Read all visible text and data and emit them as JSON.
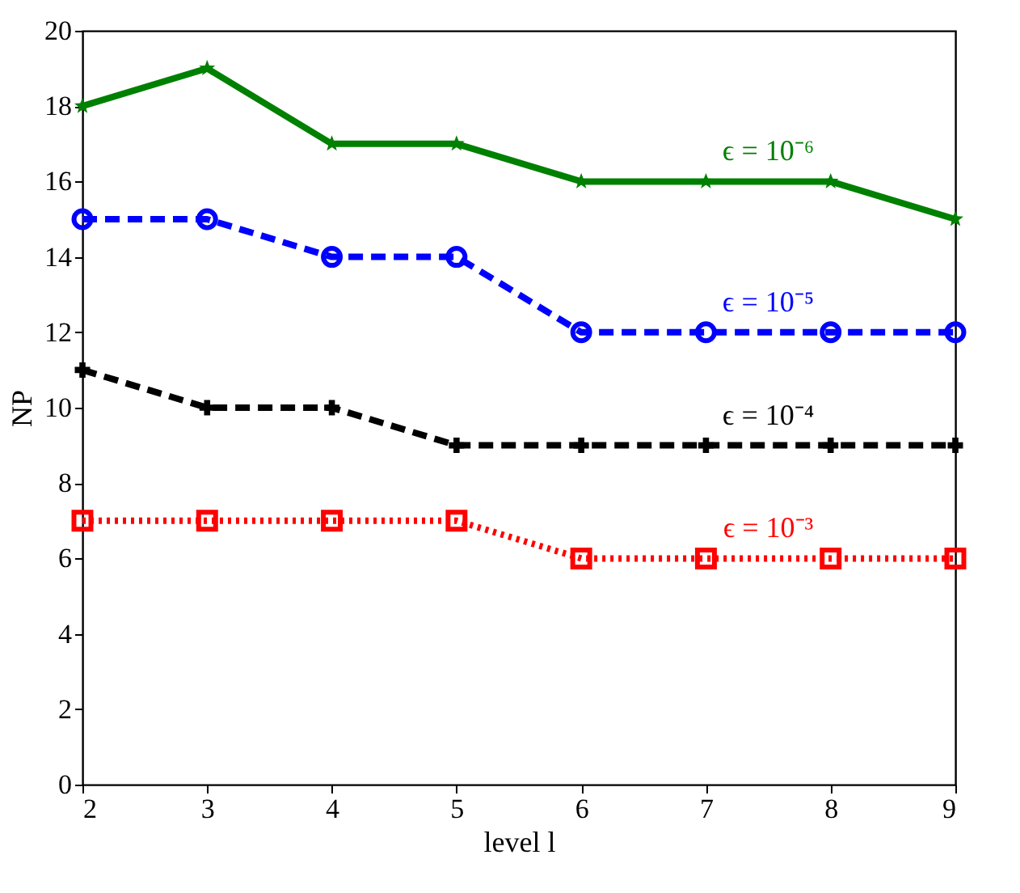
{
  "chart_data": {
    "type": "line",
    "xlabel": "level l",
    "ylabel": "NP",
    "x": [
      2,
      3,
      4,
      5,
      6,
      7,
      8,
      9
    ],
    "xlim": [
      2,
      9
    ],
    "xticks": [
      2,
      3,
      4,
      5,
      6,
      7,
      8,
      9
    ],
    "ylim": [
      0,
      20
    ],
    "yticks": [
      0,
      2,
      4,
      6,
      8,
      10,
      12,
      14,
      16,
      18,
      20
    ],
    "grid": false,
    "legend": false,
    "series": [
      {
        "name": "ϵ = 10⁻⁶",
        "color": "#008000",
        "values": [
          18,
          19,
          17,
          17,
          16,
          16,
          16,
          15
        ],
        "line_style": "solid",
        "marker": "star"
      },
      {
        "name": "ϵ = 10⁻⁵",
        "color": "#0000ff",
        "values": [
          15,
          15,
          14,
          14,
          12,
          12,
          12,
          12
        ],
        "line_style": "dashed",
        "marker": "circle"
      },
      {
        "name": "ϵ = 10⁻⁴",
        "color": "#000000",
        "values": [
          11,
          10,
          10,
          9,
          9,
          9,
          9,
          9
        ],
        "line_style": "dashed",
        "marker": "cross"
      },
      {
        "name": "ϵ = 10⁻³",
        "color": "#ff0000",
        "values": [
          7,
          7,
          7,
          7,
          6,
          6,
          6,
          6
        ],
        "line_style": "dotted",
        "marker": "square"
      }
    ]
  }
}
